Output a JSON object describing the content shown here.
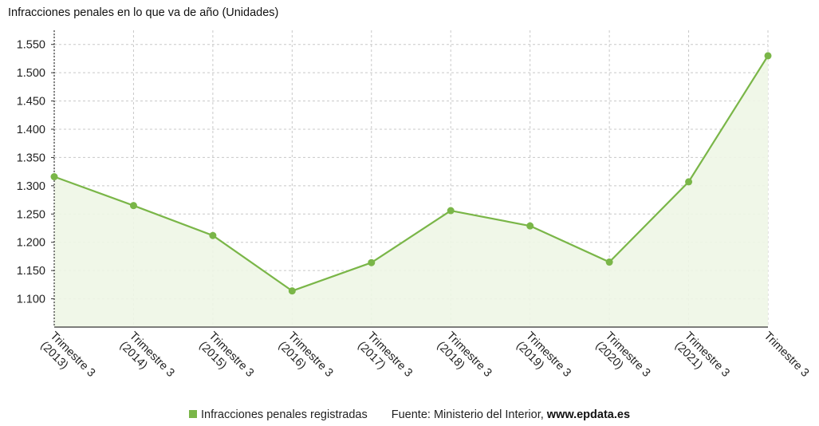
{
  "title": "Infracciones penales en lo que va de año (Unidades)",
  "legend": {
    "series_label": "Infracciones penales registradas",
    "source_prefix": "Fuente: Ministerio del Interior, ",
    "source_site": "www.epdata.es"
  },
  "colors": {
    "line": "#7ab648",
    "area": "#eef6e6",
    "grid": "#c8c8c8",
    "axis": "#333333"
  },
  "chart_data": {
    "type": "line",
    "title": "Infracciones penales en lo que va de año (Unidades)",
    "categories": [
      [
        "Trimestre 3",
        "(2013)"
      ],
      [
        "Trimestre 3",
        "(2014)"
      ],
      [
        "Trimestre 3",
        "(2015)"
      ],
      [
        "Trimestre 3",
        "(2016)"
      ],
      [
        "Trimestre 3",
        "(2017)"
      ],
      [
        "Trimestre 3",
        "(2018)"
      ],
      [
        "Trimestre 3",
        "(2019)"
      ],
      [
        "Trimestre 3",
        "(2020)"
      ],
      [
        "Trimestre 3",
        "(2021)"
      ],
      [
        "Trimestre 3"
      ]
    ],
    "series": [
      {
        "name": "Infracciones penales registradas",
        "values": [
          1316,
          1265,
          1212,
          1114,
          1164,
          1256,
          1229,
          1165,
          1307,
          1530
        ]
      }
    ],
    "ylim": [
      1050,
      1575
    ],
    "yticks": [
      1100,
      1150,
      1200,
      1250,
      1300,
      1350,
      1400,
      1450,
      1500,
      1550
    ],
    "ytick_labels": [
      "1.100",
      "1.150",
      "1.200",
      "1.250",
      "1.300",
      "1.350",
      "1.400",
      "1.450",
      "1.500",
      "1.550"
    ],
    "grid": true,
    "legend_position": "bottom"
  }
}
